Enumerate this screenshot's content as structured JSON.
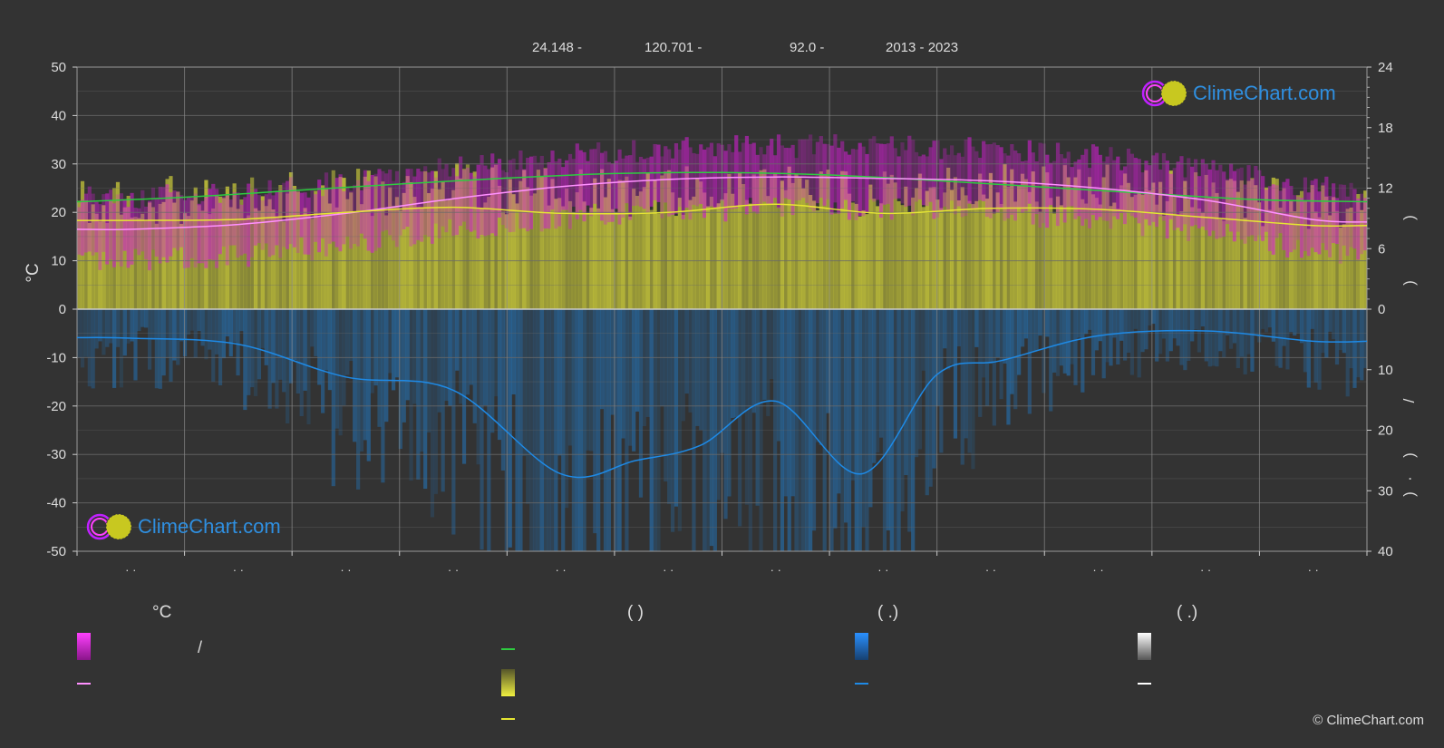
{
  "header": {
    "lat": "24.148 -",
    "lon": "120.701 -",
    "elev": "92.0 -",
    "years": "2013 - 2023"
  },
  "logo_text": "ClimeChart.com",
  "copyright": "© ClimeChart.com",
  "legend": {
    "temp_unit": "°C",
    "rain_paren": "(          )",
    "precip_paren": "(   .)",
    "snow_paren": "(   .)",
    "slash": "/"
  },
  "colors": {
    "background": "#333333",
    "temp_band": "#d21ed2",
    "avg_temp": "#ff90ff",
    "daylight": "#2ecc40",
    "sunshine": "#e6e632",
    "sunshine_band": "#c9c93a",
    "precip": "#1e8ae6",
    "snow": "#ffffff",
    "grid": "#6a6a6a"
  },
  "chart_data": {
    "type": "line",
    "left_axis": {
      "label": "°C",
      "ylim": [
        -50,
        50
      ],
      "ticks": [
        50,
        40,
        30,
        20,
        10,
        0,
        -10,
        -20,
        -30,
        -40,
        -50
      ]
    },
    "right_axis_top": {
      "ylim": [
        0,
        24
      ],
      "ticks": [
        24,
        18,
        12,
        6,
        0
      ]
    },
    "right_axis_bottom": {
      "ylim": [
        0,
        40
      ],
      "ticks": [
        0,
        10,
        20,
        30,
        40
      ]
    },
    "x_month_tick_labels": [
      "· ·",
      "· ·",
      "· ·",
      "· ·",
      "· ·",
      "· ·",
      "· ·",
      "· ·",
      "· ·",
      "· ·",
      "· ·",
      "· ·"
    ],
    "grid": true,
    "series": [
      {
        "key": "daylight",
        "x": [
          0,
          1,
          2,
          3,
          4,
          5,
          6,
          7,
          8,
          9,
          10,
          11,
          12
        ],
        "values": [
          10.65,
          11.1,
          11.75,
          12.4,
          13.0,
          13.45,
          13.55,
          13.3,
          12.75,
          12.1,
          11.45,
          10.85,
          10.65
        ]
      },
      {
        "key": "avg_temp",
        "x": [
          0,
          0.5,
          1.5,
          2.5,
          3.5,
          4.5,
          5.5,
          6.5,
          7.5,
          8.5,
          9.5,
          10.5,
          11.5,
          12
        ],
        "values": [
          16.5,
          16.5,
          17.5,
          19.8,
          22.8,
          25.3,
          26.8,
          27.3,
          27.0,
          26.5,
          25.0,
          22.5,
          18.5,
          18.0
        ]
      },
      {
        "key": "sunshine",
        "x": [
          0,
          0.5,
          1.5,
          2.5,
          3.5,
          4.5,
          5.5,
          6.5,
          7.5,
          8.5,
          9.5,
          10.5,
          11.5,
          12
        ],
        "values": [
          8.8,
          8.8,
          8.9,
          9.6,
          10.1,
          9.5,
          9.6,
          10.4,
          9.5,
          10.0,
          9.9,
          9.1,
          8.3,
          8.3
        ]
      },
      {
        "key": "precip",
        "x": [
          0,
          0.5,
          1.5,
          2.5,
          3.5,
          4.5,
          5.2,
          5.8,
          6.5,
          7.3,
          8.0,
          8.6,
          9.5,
          10.5,
          11.5,
          12
        ],
        "values": [
          4.7,
          4.8,
          5.8,
          11.2,
          13.4,
          27.2,
          25.0,
          22.5,
          15.2,
          27.2,
          10.8,
          8.5,
          4.4,
          3.6,
          5.3,
          5.3
        ]
      }
    ]
  }
}
